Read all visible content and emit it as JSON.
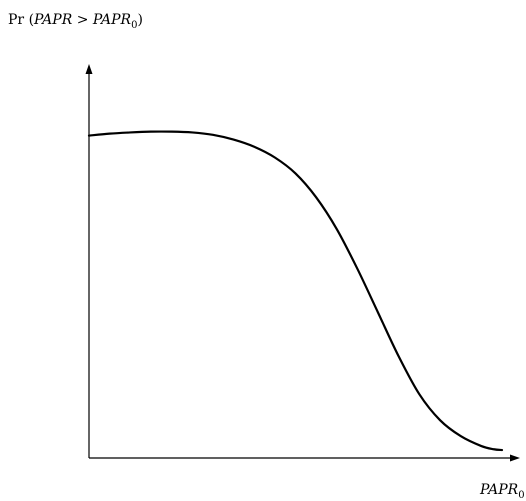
{
  "chart_data": {
    "type": "line",
    "title": "",
    "ylabel": {
      "prefix": "Pr (",
      "var": "PAPR",
      "op": " > ",
      "var0": "PAPR",
      "sub": "0",
      "suffix": ")"
    },
    "xlabel": {
      "var": "PAPR",
      "sub": "0"
    },
    "xlim": [
      0,
      1
    ],
    "ylim": [
      0,
      1
    ],
    "grid": false,
    "legend": "none",
    "series": [
      {
        "x": [
          0.0,
          0.05,
          0.1,
          0.15,
          0.2,
          0.25,
          0.3,
          0.35,
          0.4,
          0.45,
          0.5,
          0.55,
          0.6,
          0.65,
          0.7,
          0.75,
          0.8,
          0.85,
          0.9,
          0.95,
          0.98,
          1.0
        ],
        "values": [
          0.81,
          0.815,
          0.818,
          0.82,
          0.82,
          0.818,
          0.812,
          0.8,
          0.782,
          0.755,
          0.715,
          0.655,
          0.575,
          0.475,
          0.365,
          0.255,
          0.16,
          0.095,
          0.055,
          0.03,
          0.022,
          0.02
        ]
      }
    ],
    "line_color": "#000000"
  }
}
